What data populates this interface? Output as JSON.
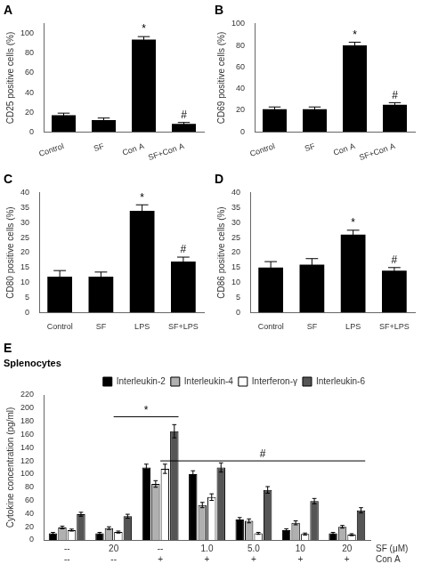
{
  "chart_data": [
    {
      "type": "bar",
      "title": "A",
      "ylabel": "CD25 positive cells (%)",
      "categories": [
        "Control",
        "SF",
        "Con A",
        "SF+Con A"
      ],
      "values": [
        17,
        12,
        94,
        8
      ],
      "errors": [
        2,
        2,
        3,
        1.5
      ],
      "color": "#000000",
      "ylim": [
        0,
        110
      ],
      "yticks": [
        0,
        20,
        40,
        60,
        80,
        100
      ],
      "grid": false,
      "annotations": [
        {
          "text": "*",
          "category": "Con A"
        },
        {
          "text": "#",
          "category": "SF+Con A"
        }
      ]
    },
    {
      "type": "bar",
      "title": "B",
      "ylabel": "CD69 positive cells (%)",
      "categories": [
        "Control",
        "SF",
        "Con A",
        "SF+Con A"
      ],
      "values": [
        21,
        21,
        80,
        25
      ],
      "errors": [
        2,
        2,
        3,
        2
      ],
      "color": "#000000",
      "ylim": [
        0,
        100
      ],
      "yticks": [
        0,
        20,
        40,
        60,
        80,
        100
      ],
      "grid": false,
      "annotations": [
        {
          "text": "*",
          "category": "Con A"
        },
        {
          "text": "#",
          "category": "SF+Con A"
        }
      ]
    },
    {
      "type": "bar",
      "title": "C",
      "ylabel": "CD80 positive cells (%)",
      "categories": [
        "Control",
        "SF",
        "LPS",
        "SF+LPS"
      ],
      "values": [
        12,
        12,
        34,
        17
      ],
      "errors": [
        2,
        1.5,
        2,
        1.5
      ],
      "color": "#000000",
      "ylim": [
        0,
        40
      ],
      "yticks": [
        0,
        5,
        10,
        15,
        20,
        25,
        30,
        35,
        40
      ],
      "grid": false,
      "annotations": [
        {
          "text": "*",
          "category": "LPS"
        },
        {
          "text": "#",
          "category": "SF+LPS"
        }
      ]
    },
    {
      "type": "bar",
      "title": "D",
      "ylabel": "CD86 positive cells (%)",
      "categories": [
        "Control",
        "SF",
        "LPS",
        "SF+LPS"
      ],
      "values": [
        15,
        16,
        26,
        14
      ],
      "errors": [
        2,
        2,
        1.5,
        1
      ],
      "color": "#000000",
      "ylim": [
        0,
        40
      ],
      "yticks": [
        0,
        5,
        10,
        15,
        20,
        25,
        30,
        35,
        40
      ],
      "grid": false,
      "annotations": [
        {
          "text": "*",
          "category": "LPS"
        },
        {
          "text": "#",
          "category": "SF+LPS"
        }
      ]
    },
    {
      "type": "bar",
      "title": "E",
      "subtitle": "Splenocytes",
      "ylabel": "Cytokine concentration (pg/ml)",
      "categories": [
        [
          "--",
          "--"
        ],
        [
          "20",
          "--"
        ],
        [
          "--",
          "+"
        ],
        [
          "1.0",
          "+"
        ],
        [
          "5.0",
          "+"
        ],
        [
          "10",
          "+"
        ],
        [
          "20",
          "+"
        ]
      ],
      "category_rows": [
        "SF (μM)",
        "Con A"
      ],
      "series": [
        {
          "name": "Interleukin-2",
          "color": "#000000",
          "values": [
            10,
            10,
            110,
            100,
            31,
            15,
            10
          ],
          "errors": [
            1.5,
            1.5,
            5,
            5,
            3,
            2,
            1.5
          ]
        },
        {
          "name": "Interleukin-4",
          "color": "#b0b0b0",
          "values": [
            19,
            18,
            85,
            53,
            29,
            26,
            20
          ],
          "errors": [
            2,
            2,
            5,
            4,
            3,
            3,
            2
          ]
        },
        {
          "name": "Interferon-γ",
          "color": "#ffffff",
          "values": [
            15,
            12,
            108,
            65,
            10,
            9,
            8
          ],
          "errors": [
            1.5,
            1.5,
            7,
            5,
            1.5,
            1.5,
            1.5
          ]
        },
        {
          "name": "Interleukin-6",
          "color": "#555555",
          "values": [
            39,
            36,
            165,
            110,
            76,
            59,
            45
          ],
          "errors": [
            3,
            3,
            10,
            7,
            5,
            4,
            4
          ]
        }
      ],
      "ylim": [
        0,
        220
      ],
      "yticks": [
        0,
        20,
        40,
        60,
        80,
        100,
        120,
        140,
        160,
        180,
        200,
        220
      ],
      "grid": false,
      "legend": "upper right",
      "annotations": [
        {
          "text": "*",
          "y": 187,
          "from": 1,
          "to": 2
        },
        {
          "text": "#",
          "y": 120,
          "from": 2,
          "to": 6
        }
      ]
    }
  ]
}
